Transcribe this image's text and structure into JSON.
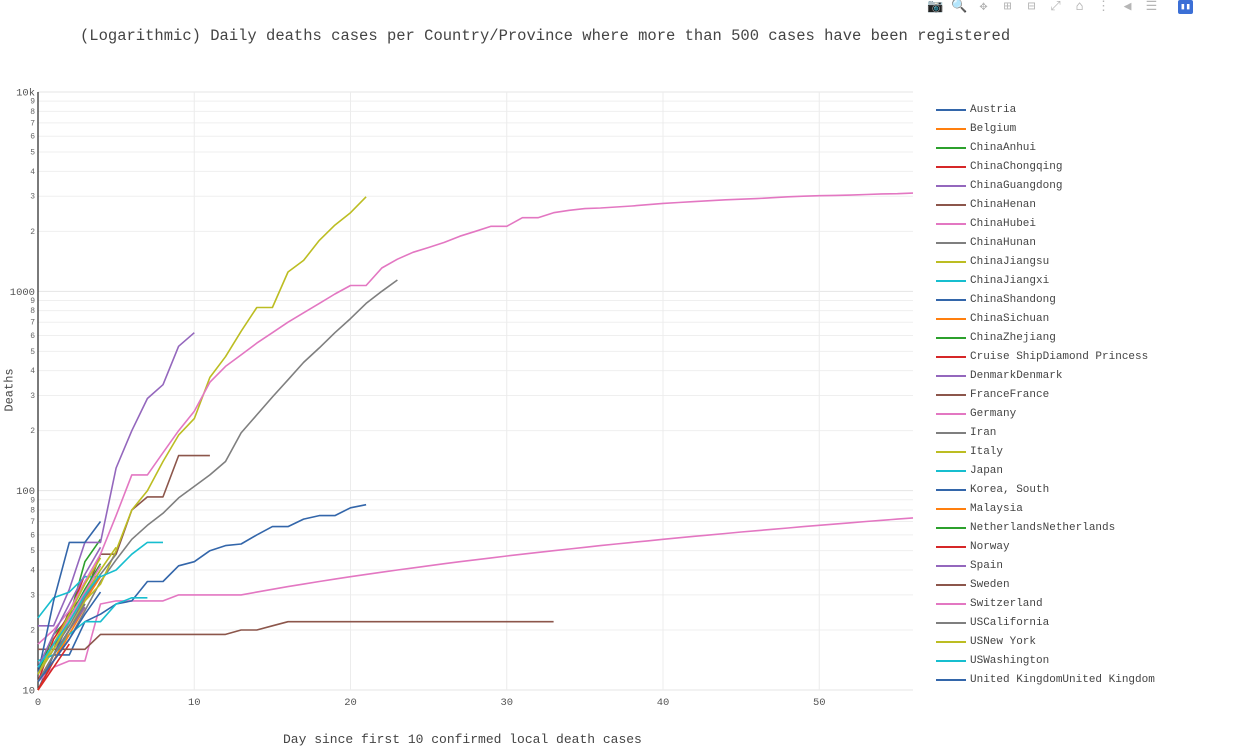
{
  "modebar": {
    "buttons": [
      {
        "name": "camera-icon",
        "glyph": "📷"
      },
      {
        "name": "zoom-icon",
        "glyph": "🔍"
      },
      {
        "name": "pan-icon",
        "glyph": "✥"
      },
      {
        "name": "zoom-in-icon",
        "glyph": "⊞"
      },
      {
        "name": "zoom-out-icon",
        "glyph": "⊟"
      },
      {
        "name": "autoscale-icon",
        "glyph": "⤢"
      },
      {
        "name": "home-icon",
        "glyph": "⌂"
      },
      {
        "name": "spike-lines-icon",
        "glyph": "⋮"
      },
      {
        "name": "hover-closest-icon",
        "glyph": "◀"
      },
      {
        "name": "hover-compare-icon",
        "glyph": "☰"
      },
      {
        "name": "plotly-logo-icon",
        "glyph": "▮▮"
      }
    ]
  },
  "chart_data": {
    "type": "line",
    "title": "(Logarithmic) Daily deaths cases per Country/Province where more than 500 cases have been registered",
    "xlabel": "Day since first 10 confirmed local death cases",
    "ylabel": "Deaths",
    "yscale": "log",
    "xlim": [
      0,
      56
    ],
    "ylim": [
      10,
      10000
    ],
    "x_ticks": [
      0,
      10,
      20,
      30,
      40,
      50
    ],
    "y_major_ticks": [
      {
        "value": 10,
        "label": "10"
      },
      {
        "value": 100,
        "label": "100"
      },
      {
        "value": 1000,
        "label": "1000"
      },
      {
        "value": 10000,
        "label": "10k"
      }
    ],
    "y_minor_labels": [
      "2",
      "3",
      "4",
      "5",
      "6",
      "7",
      "8",
      "9"
    ],
    "grid": true,
    "legend_position": "right",
    "series": [
      {
        "name": "Austria",
        "color": "#3366aa",
        "x": [
          0,
          1,
          2,
          3,
          4
        ],
        "y": [
          10,
          15,
          22,
          30,
          40
        ]
      },
      {
        "name": "Belgium",
        "color": "#ff7f0e",
        "x": [
          0,
          1,
          2,
          3,
          4
        ],
        "y": [
          10,
          14,
          20,
          28,
          37
        ]
      },
      {
        "name": "ChinaAnhui",
        "color": "#2ca02c",
        "x": [
          0,
          1,
          2,
          3,
          4
        ],
        "y": [
          12,
          19,
          23,
          44,
          57
        ]
      },
      {
        "name": "ChinaChongqing",
        "color": "#d62728",
        "x": [
          0,
          1,
          2,
          3
        ],
        "y": [
          11,
          18,
          24,
          38
        ]
      },
      {
        "name": "ChinaGuangdong",
        "color": "#9467bd",
        "x": [
          0,
          1,
          2,
          3,
          4,
          5,
          6,
          7,
          8,
          9,
          10
        ],
        "y": [
          21,
          21,
          32,
          55,
          55,
          130,
          200,
          290,
          340,
          530,
          620
        ]
      },
      {
        "name": "ChinaHenan",
        "color": "#8c564b",
        "x": [
          0,
          1,
          2,
          3,
          4,
          5,
          6,
          7,
          8,
          9,
          10,
          11
        ],
        "y": [
          16,
          16,
          25,
          30,
          48,
          48,
          80,
          93,
          93,
          150,
          150,
          150
        ]
      },
      {
        "name": "ChinaHubei",
        "color": "#e377c2",
        "x": [
          0,
          1,
          2,
          3,
          4,
          5,
          6,
          7,
          8,
          9,
          10,
          11,
          12,
          13,
          14,
          15,
          16,
          17,
          18,
          19,
          20,
          21,
          22,
          23,
          24,
          25,
          26,
          27,
          28,
          29,
          30,
          31,
          32,
          33,
          34,
          35,
          36,
          37,
          38,
          39,
          40,
          41,
          42,
          43,
          44,
          45,
          46,
          47,
          48,
          49,
          50,
          51,
          52,
          53,
          54,
          55,
          56
        ],
        "y": [
          11,
          13,
          14,
          14,
          27,
          28,
          28,
          28,
          28,
          30,
          30,
          30,
          30,
          30,
          31,
          32,
          33,
          34,
          35,
          36,
          37,
          38,
          39,
          40,
          41,
          42,
          43,
          44,
          45,
          46,
          47,
          48,
          49,
          50,
          51,
          52,
          53,
          54,
          55,
          56,
          57,
          58,
          59,
          60,
          61,
          62,
          63,
          64,
          65,
          66,
          67,
          68,
          69,
          70,
          71,
          72,
          73
        ]
      },
      {
        "name": "ChinaHunan",
        "color": "#7f7f7f",
        "x": [
          0,
          1,
          2,
          3,
          4,
          5,
          6,
          7,
          8,
          9,
          10,
          11,
          12,
          13,
          14,
          15,
          16,
          17,
          18,
          19,
          20,
          21,
          22,
          23
        ],
        "y": [
          10,
          14,
          18,
          25,
          35,
          45,
          57,
          67,
          77,
          92,
          105,
          120,
          140,
          195,
          240,
          295,
          360,
          440,
          520,
          620,
          730,
          870,
          1000,
          1140
        ]
      },
      {
        "name": "ChinaJiangsu",
        "color": "#bcbd22",
        "x": [
          0,
          1,
          2,
          3,
          4,
          5,
          6,
          7,
          8,
          9,
          10,
          11,
          12,
          13,
          14,
          15,
          16,
          17,
          18,
          19,
          20,
          21
        ],
        "y": [
          11,
          15,
          20,
          28,
          34,
          50,
          80,
          100,
          140,
          190,
          230,
          370,
          470,
          630,
          830,
          830,
          1250,
          1430,
          1800,
          2150,
          2480,
          2980
        ]
      },
      {
        "name": "ChinaJiangxi",
        "color": "#17becf",
        "x": [
          0,
          1,
          2,
          3,
          4,
          5,
          6,
          7,
          8
        ],
        "y": [
          23,
          29,
          31,
          37,
          37,
          40,
          48,
          55,
          55
        ]
      },
      {
        "name": "ChinaShandong",
        "color": "#3366aa",
        "x": [
          0,
          1,
          2,
          3,
          4,
          5,
          6,
          7,
          8,
          9,
          10,
          11,
          12,
          13,
          14,
          15,
          16,
          17,
          18,
          19,
          20,
          21
        ],
        "y": [
          14,
          15,
          15,
          22,
          24,
          27,
          28,
          35,
          35,
          42,
          44,
          50,
          53,
          54,
          60,
          66,
          66,
          72,
          75,
          75,
          82,
          85
        ]
      },
      {
        "name": "ChinaSichuan",
        "color": "#ff7f0e",
        "x": [
          0,
          1,
          2,
          3
        ],
        "y": [
          11,
          14,
          19,
          26
        ]
      },
      {
        "name": "ChinaZhejiang",
        "color": "#2ca02c",
        "x": [
          0,
          1,
          2,
          3
        ],
        "y": [
          11,
          15,
          20,
          27
        ]
      },
      {
        "name": "Cruise ShipDiamond Princess",
        "color": "#d62728",
        "x": [
          0,
          1,
          2
        ],
        "y": [
          10,
          13,
          17
        ]
      },
      {
        "name": "DenmarkDenmark",
        "color": "#9467bd",
        "x": [
          0,
          1,
          2,
          3
        ],
        "y": [
          11,
          15,
          20,
          26
        ]
      },
      {
        "name": "FranceFrance",
        "color": "#8c564b",
        "x": [
          0,
          1,
          2,
          3,
          4,
          5,
          6,
          7,
          8,
          9,
          10,
          11,
          12,
          13,
          14,
          15,
          16,
          17,
          18,
          19,
          20,
          21,
          22,
          23,
          24,
          25,
          26,
          27,
          28,
          29,
          30,
          31,
          32,
          33
        ],
        "y": [
          12,
          16,
          16,
          16,
          19,
          19,
          19,
          19,
          19,
          19,
          19,
          19,
          19,
          20,
          20,
          21,
          22,
          22,
          22,
          22,
          22,
          22,
          22,
          22,
          22,
          22,
          22,
          22,
          22,
          22,
          22,
          22,
          22,
          22
        ]
      },
      {
        "name": "Germany",
        "color": "#e377c2",
        "x": [
          0,
          1,
          2,
          3,
          4,
          5,
          6,
          7,
          8,
          9,
          10,
          11,
          12,
          13,
          14,
          15,
          16,
          17,
          18,
          19,
          20,
          21,
          22,
          23,
          24,
          25,
          26,
          27,
          28,
          29,
          30,
          31,
          32,
          33,
          34,
          35,
          36,
          37,
          38,
          39,
          40,
          41,
          42,
          43,
          44,
          45,
          46,
          47,
          48,
          49,
          50,
          51,
          52,
          53,
          54,
          55,
          56
        ],
        "y": [
          17,
          20,
          25,
          35,
          48,
          75,
          120,
          120,
          155,
          200,
          250,
          350,
          420,
          480,
          550,
          620,
          700,
          780,
          870,
          970,
          1070,
          1070,
          1310,
          1450,
          1570,
          1660,
          1760,
          1890,
          2000,
          2120,
          2120,
          2340,
          2340,
          2480,
          2550,
          2600,
          2620,
          2650,
          2680,
          2720,
          2760,
          2790,
          2820,
          2850,
          2880,
          2900,
          2920,
          2950,
          2980,
          3000,
          3020,
          3030,
          3040,
          3060,
          3080,
          3090,
          3110
        ]
      },
      {
        "name": "Iran",
        "color": "#7f7f7f",
        "x": [
          0,
          1,
          2,
          3,
          4,
          5
        ],
        "y": [
          12,
          16,
          21,
          29,
          38,
          48
        ]
      },
      {
        "name": "Italy",
        "color": "#bcbd22",
        "x": [
          0,
          1,
          2,
          3,
          4,
          5
        ],
        "y": [
          12,
          16,
          22,
          30,
          40,
          52
        ]
      },
      {
        "name": "Japan",
        "color": "#17becf",
        "x": [
          0,
          1,
          2,
          3,
          4,
          5,
          6,
          7
        ],
        "y": [
          14,
          15,
          19,
          22,
          22,
          27,
          29,
          29
        ]
      },
      {
        "name": "Korea, South",
        "color": "#3366aa",
        "x": [
          0,
          1,
          2,
          3,
          4
        ],
        "y": [
          12,
          28,
          55,
          55,
          70
        ]
      },
      {
        "name": "Malaysia",
        "color": "#ff7f0e",
        "x": [
          0,
          1,
          2
        ],
        "y": [
          10,
          14,
          19
        ]
      },
      {
        "name": "NetherlandsNetherlands",
        "color": "#2ca02c",
        "x": [
          0,
          1,
          2,
          3,
          4
        ],
        "y": [
          12,
          17,
          23,
          32,
          43
        ]
      },
      {
        "name": "Norway",
        "color": "#d62728",
        "x": [
          0,
          1,
          2
        ],
        "y": [
          10,
          14,
          18
        ]
      },
      {
        "name": "Spain",
        "color": "#9467bd",
        "x": [
          0,
          1,
          2,
          3,
          4
        ],
        "y": [
          13,
          19,
          27,
          38,
          52
        ]
      },
      {
        "name": "Sweden",
        "color": "#8c564b",
        "x": [
          0,
          1,
          2,
          3
        ],
        "y": [
          11,
          15,
          20,
          27
        ]
      },
      {
        "name": "Switzerland",
        "color": "#e377c2",
        "x": [
          0,
          1,
          2,
          3,
          4
        ],
        "y": [
          12,
          17,
          23,
          31,
          42
        ]
      },
      {
        "name": "USCalifornia",
        "color": "#7f7f7f",
        "x": [
          0,
          1,
          2,
          3
        ],
        "y": [
          11,
          15,
          20,
          27
        ]
      },
      {
        "name": "USNew York",
        "color": "#bcbd22",
        "x": [
          0,
          1,
          2,
          3,
          4
        ],
        "y": [
          12,
          17,
          24,
          34,
          46
        ]
      },
      {
        "name": "USWashington",
        "color": "#17becf",
        "x": [
          0,
          1,
          2,
          3,
          4
        ],
        "y": [
          13,
          17,
          22,
          30,
          38
        ]
      },
      {
        "name": "United KingdomUnited Kingdom",
        "color": "#3366aa",
        "x": [
          0,
          1,
          2,
          3,
          4
        ],
        "y": [
          11,
          14,
          18,
          24,
          31
        ]
      }
    ]
  }
}
